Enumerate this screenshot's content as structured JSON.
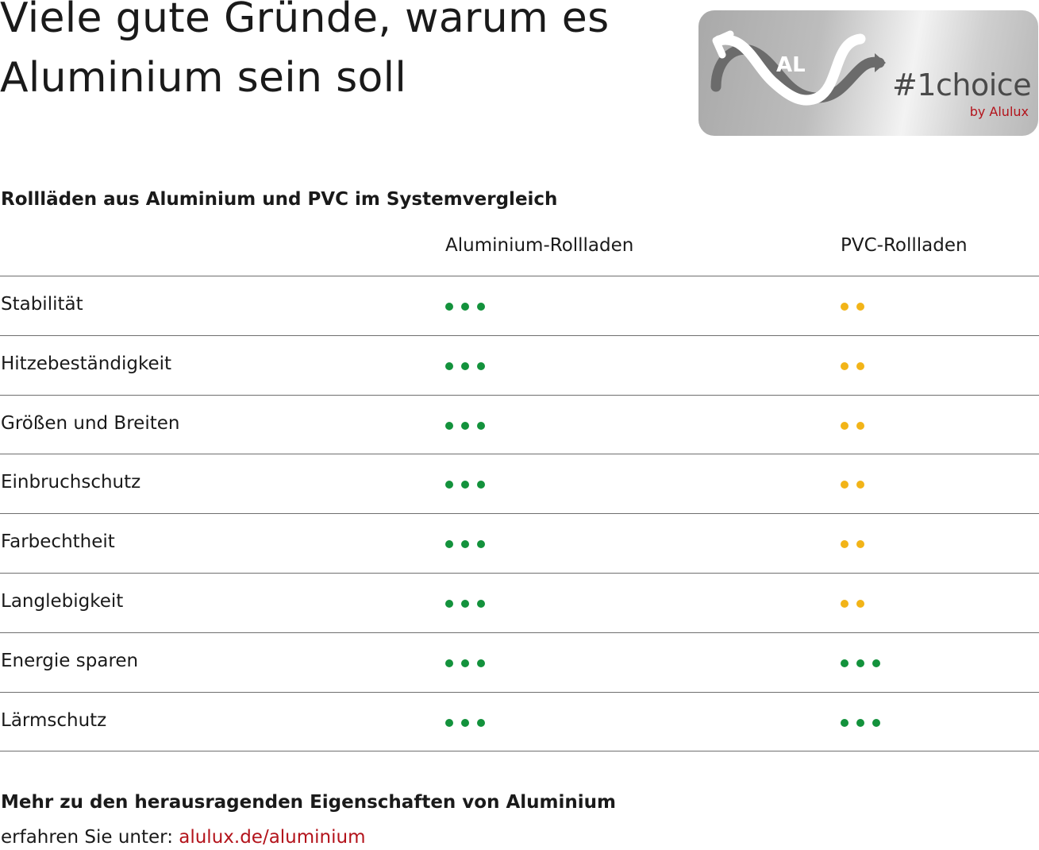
{
  "heading": {
    "line1": "Viele gute Gründe, warum es",
    "line2": "Aluminium sein soll"
  },
  "logo": {
    "mark": "AL",
    "tagline": "#1choice",
    "by": "by Alulux",
    "icon": "infinity-arrows-icon"
  },
  "comparison": {
    "subtitle": "Rollläden aus Aluminium und PVC im Systemvergleich",
    "columns": [
      "Aluminium-Rollladen",
      "PVC-Rollladen"
    ],
    "rows": [
      {
        "label": "Stabilität",
        "aluminium": 3,
        "pvc": 2
      },
      {
        "label": "Hitzebeständigkeit",
        "aluminium": 3,
        "pvc": 2
      },
      {
        "label": "Größen und Breiten",
        "aluminium": 3,
        "pvc": 2
      },
      {
        "label": "Einbruchschutz",
        "aluminium": 3,
        "pvc": 2
      },
      {
        "label": "Farbechtheit",
        "aluminium": 3,
        "pvc": 2
      },
      {
        "label": "Langlebigkeit",
        "aluminium": 3,
        "pvc": 2
      },
      {
        "label": "Energie sparen",
        "aluminium": 3,
        "pvc": 3
      },
      {
        "label": "Lärmschutz",
        "aluminium": 3,
        "pvc": 3
      }
    ]
  },
  "colors": {
    "green_dot": "#13923c",
    "yellow_dot": "#f2b418",
    "link": "#b3131b"
  },
  "footer": {
    "bold_line": "Mehr zu den herausragenden Eigenschaften von Aluminium",
    "prefix": "erfahren Sie unter: ",
    "link": "alulux.de/aluminium"
  }
}
